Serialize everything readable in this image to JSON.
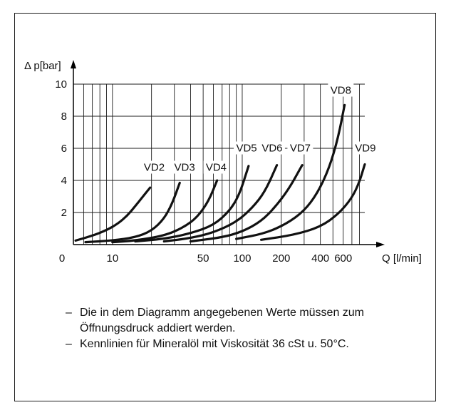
{
  "chart_data": {
    "type": "line",
    "title": "",
    "xlabel": "Q [l/min]",
    "ylabel": "Δ p[bar]",
    "x_scale": "log",
    "xlim": [
      5,
      880
    ],
    "ylim": [
      0,
      10
    ],
    "x_tick_labels": [
      {
        "value": 10,
        "label": "10"
      },
      {
        "value": 50,
        "label": "50"
      },
      {
        "value": 100,
        "label": "100"
      },
      {
        "value": 200,
        "label": "200"
      },
      {
        "value": 400,
        "label": "400"
      },
      {
        "value": 600,
        "label": "600"
      }
    ],
    "x_origin_label": "0",
    "y_ticks": [
      0,
      2,
      4,
      6,
      8,
      10
    ],
    "y_tick_labels": [
      "",
      "2",
      "4",
      "6",
      "8",
      "10"
    ],
    "grid": true,
    "series": [
      {
        "name": "VD2",
        "label_pos": [
          21,
          4.6
        ],
        "x": [
          5.2,
          7,
          9,
          11,
          13,
          15,
          17,
          19.5
        ],
        "y": [
          0.25,
          0.55,
          0.9,
          1.3,
          1.8,
          2.4,
          2.95,
          3.55
        ]
      },
      {
        "name": "VD3",
        "label_pos": [
          36,
          4.6
        ],
        "x": [
          6.2,
          10,
          15,
          20,
          25,
          29,
          33
        ],
        "y": [
          0.15,
          0.25,
          0.45,
          0.85,
          1.6,
          2.6,
          3.85
        ]
      },
      {
        "name": "VD4",
        "label_pos": [
          63,
          4.6
        ],
        "x": [
          10,
          15,
          25,
          35,
          45,
          55,
          64
        ],
        "y": [
          0.15,
          0.25,
          0.55,
          1.05,
          1.7,
          2.7,
          4.0
        ]
      },
      {
        "name": "VD5",
        "label_pos": [
          108,
          5.8
        ],
        "x": [
          15,
          25,
          40,
          60,
          80,
          95,
          112
        ],
        "y": [
          0.2,
          0.35,
          0.7,
          1.2,
          2.1,
          3.1,
          4.9
        ]
      },
      {
        "name": "VD6",
        "label_pos": [
          170,
          5.8
        ],
        "x": [
          25,
          40,
          60,
          90,
          120,
          150,
          185
        ],
        "y": [
          0.2,
          0.4,
          0.75,
          1.4,
          2.3,
          3.3,
          4.95
        ]
      },
      {
        "name": "VD7",
        "label_pos": [
          280,
          5.8
        ],
        "x": [
          40,
          70,
          100,
          140,
          180,
          230,
          290
        ],
        "y": [
          0.2,
          0.45,
          0.8,
          1.45,
          2.35,
          3.5,
          4.95
        ]
      },
      {
        "name": "VD8",
        "label_pos": [
          575,
          9.4
        ],
        "x": [
          90,
          150,
          220,
          300,
          380,
          470,
          550,
          615
        ],
        "y": [
          0.35,
          0.7,
          1.3,
          2.1,
          3.2,
          4.8,
          6.7,
          8.7
        ]
      },
      {
        "name": "VD9",
        "label_pos": [
          890,
          5.8
        ],
        "x": [
          140,
          250,
          400,
          550,
          700,
          800,
          880
        ],
        "y": [
          0.3,
          0.6,
          1.1,
          1.9,
          2.9,
          3.9,
          5.0
        ]
      }
    ]
  },
  "notes": [
    "Die in dem Diagramm angegebenen Werte müssen zum Öffnungsdruck addiert werden.",
    "Kennlinien für Mineralöl mit Viskosität 36 cSt u. 50°C."
  ]
}
